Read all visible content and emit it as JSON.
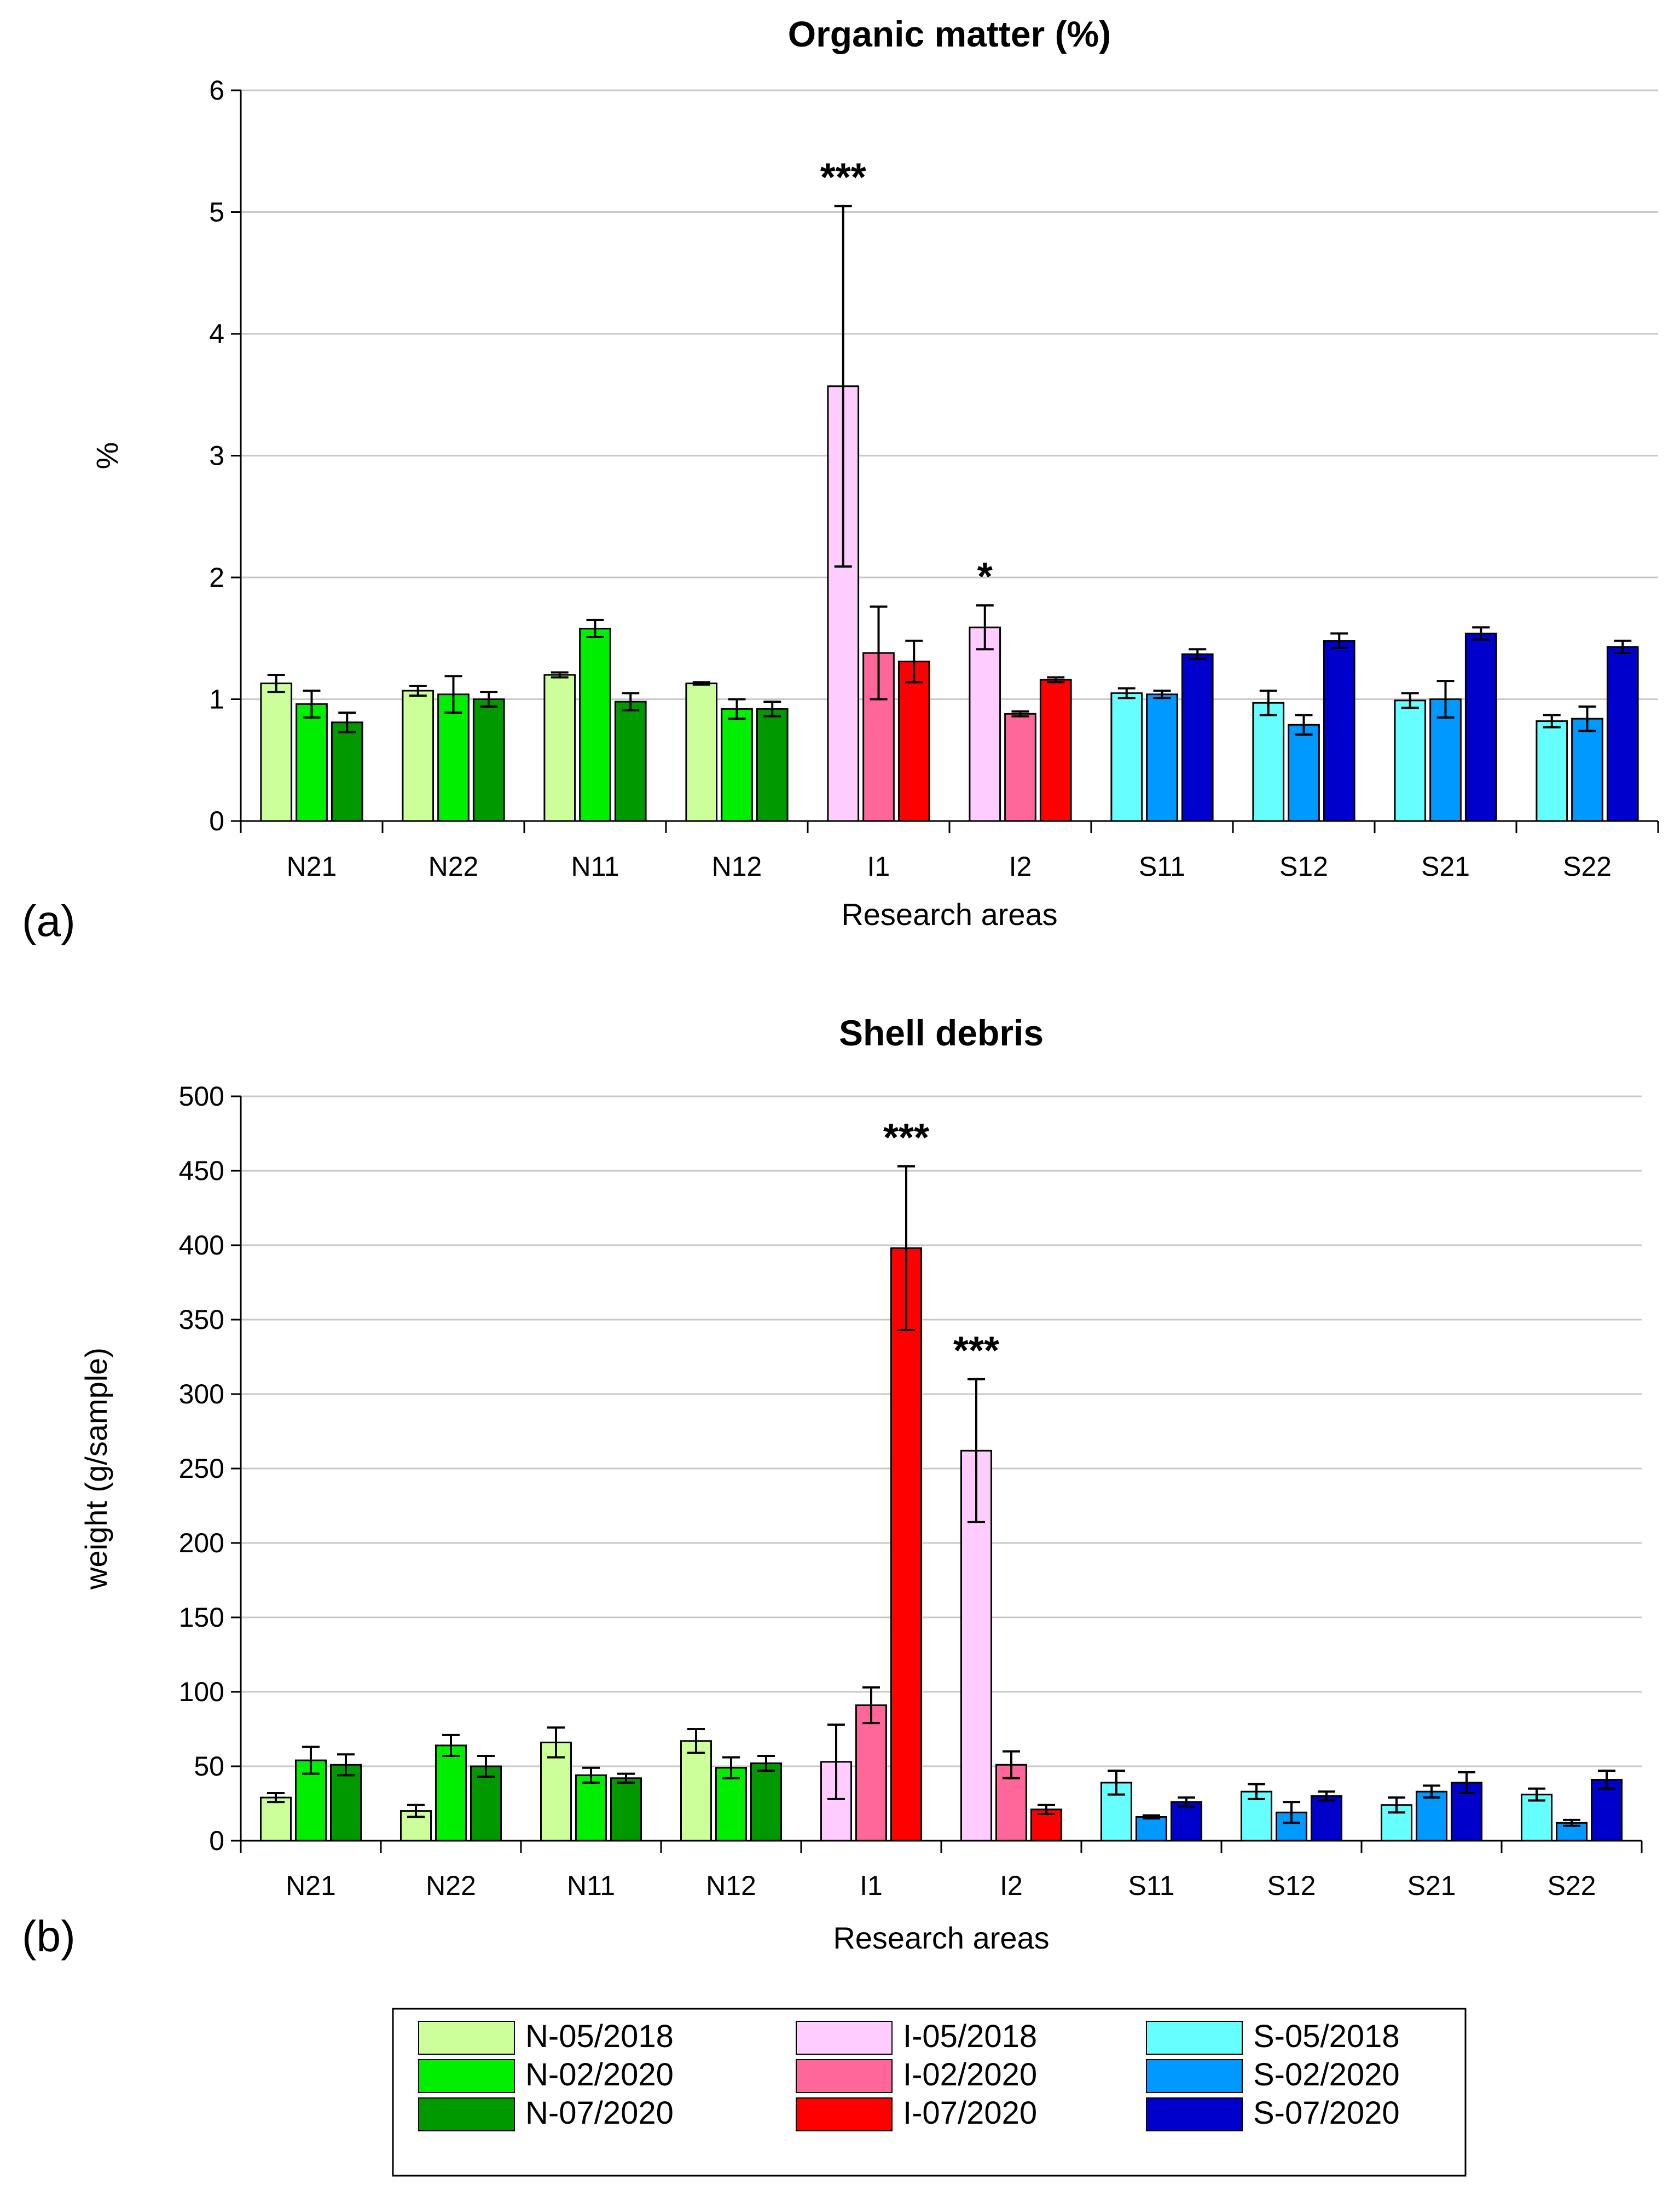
{
  "legend": {
    "items": [
      {
        "label": "N-05/2018",
        "color": "#ccff99"
      },
      {
        "label": "N-02/2020",
        "color": "#00ee00"
      },
      {
        "label": "N-07/2020",
        "color": "#009900"
      },
      {
        "label": "I-05/2018",
        "color": "#ffccff"
      },
      {
        "label": "I-02/2020",
        "color": "#ff6699"
      },
      {
        "label": "I-07/2020",
        "color": "#ff0000"
      },
      {
        "label": "S-05/2018",
        "color": "#66ffff"
      },
      {
        "label": "S-02/2020",
        "color": "#0099ff"
      },
      {
        "label": "S-07/2020",
        "color": "#0000cc"
      }
    ]
  },
  "chart_data": [
    {
      "type": "bar",
      "panel_label": "(a)",
      "title": "Organic matter (%)",
      "xlabel": "Research areas",
      "ylabel": "%",
      "ylim": [
        0,
        6
      ],
      "yticks": [
        "0",
        "1",
        "2",
        "3",
        "4",
        "5",
        "6"
      ],
      "grid": true,
      "categories": [
        "N21",
        "N22",
        "N11",
        "N12",
        "I1",
        "I2",
        "S11",
        "S12",
        "S21",
        "S22"
      ],
      "values": [
        [
          1.13,
          0.96,
          0.81
        ],
        [
          1.07,
          1.04,
          1.0
        ],
        [
          1.2,
          1.58,
          0.98
        ],
        [
          1.13,
          0.92,
          0.92
        ],
        [
          3.57,
          1.38,
          1.31
        ],
        [
          1.59,
          0.88,
          1.16
        ],
        [
          1.05,
          1.04,
          1.37
        ],
        [
          0.97,
          0.79,
          1.48
        ],
        [
          0.99,
          1.0,
          1.54
        ],
        [
          0.82,
          0.84,
          1.43
        ]
      ],
      "errors": [
        [
          0.07,
          0.11,
          0.08
        ],
        [
          0.04,
          0.15,
          0.06
        ],
        [
          0.02,
          0.07,
          0.07
        ],
        [
          0.01,
          0.08,
          0.06
        ],
        [
          1.48,
          0.38,
          0.17
        ],
        [
          0.18,
          0.02,
          0.02
        ],
        [
          0.04,
          0.03,
          0.04
        ],
        [
          0.1,
          0.08,
          0.06
        ],
        [
          0.06,
          0.15,
          0.05
        ],
        [
          0.05,
          0.1,
          0.05
        ]
      ],
      "annotations": [
        {
          "category": "I1",
          "series": 0,
          "text": "***"
        },
        {
          "category": "I2",
          "series": 0,
          "text": "*"
        }
      ]
    },
    {
      "type": "bar",
      "panel_label": "(b)",
      "title": "Shell debris",
      "xlabel": "Research areas",
      "ylabel": "weight (g/sample)",
      "ylim": [
        0,
        500
      ],
      "yticks": [
        "0",
        "50",
        "100",
        "150",
        "200",
        "250",
        "300",
        "350",
        "400",
        "450",
        "500"
      ],
      "grid": true,
      "categories": [
        "N21",
        "N22",
        "N11",
        "N12",
        "I1",
        "I2",
        "S11",
        "S12",
        "S21",
        "S22"
      ],
      "values": [
        [
          29,
          54,
          51
        ],
        [
          20,
          64,
          50
        ],
        [
          66,
          44,
          42
        ],
        [
          67,
          49,
          52
        ],
        [
          53,
          91,
          398
        ],
        [
          262,
          51,
          21
        ],
        [
          39,
          16,
          26
        ],
        [
          33,
          19,
          30
        ],
        [
          24,
          33,
          39
        ],
        [
          31,
          12,
          41
        ]
      ],
      "errors": [
        [
          3,
          9,
          7
        ],
        [
          4,
          7,
          7
        ],
        [
          10,
          5,
          3
        ],
        [
          8,
          7,
          5
        ],
        [
          25,
          12,
          55
        ],
        [
          48,
          9,
          3
        ],
        [
          8,
          1,
          3
        ],
        [
          5,
          7,
          3
        ],
        [
          5,
          4,
          7
        ],
        [
          4,
          2,
          6
        ]
      ],
      "annotations": [
        {
          "category": "I1",
          "series": 2,
          "text": "***"
        },
        {
          "category": "I2",
          "series": 0,
          "text": "***"
        }
      ]
    }
  ]
}
